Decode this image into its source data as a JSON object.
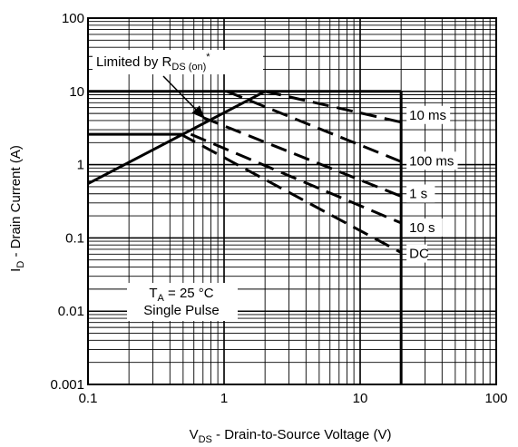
{
  "chart_data": {
    "type": "line",
    "xscale": "log",
    "yscale": "log",
    "xlim": [
      0.1,
      100
    ],
    "ylim": [
      0.001,
      100
    ],
    "x_ticks": [
      "0.1",
      "1",
      "10",
      "100"
    ],
    "y_ticks": [
      "100",
      "10",
      "1",
      "0.1",
      "0.01",
      "0.001"
    ],
    "grid": true,
    "xlabel": {
      "main": "V",
      "sub": "DS",
      "rest": " - Drain-to-Source Voltage (V)"
    },
    "ylabel": {
      "main": "I",
      "sub": "D",
      "rest": " - Drain Current (A)"
    },
    "rds_label": {
      "main": "Limited by R",
      "sub": "DS (on)",
      "sup": "*"
    },
    "conditions": {
      "line1": {
        "main": "T",
        "sub": "A",
        "rest": " = 25 °C"
      },
      "line2": "Single Pulse"
    },
    "series": [
      {
        "name": "Limited by RDS(on)",
        "style": "solid",
        "points": [
          [
            0.1,
            0.55
          ],
          [
            2.0,
            10.0
          ]
        ]
      },
      {
        "name": "10 ms",
        "style": "dashed",
        "points": [
          [
            2.0,
            10.0
          ],
          [
            20.0,
            3.8
          ]
        ]
      },
      {
        "name": "100 ms",
        "style": "dashed",
        "points": [
          [
            1.05,
            10.0
          ],
          [
            20.0,
            1.1
          ]
        ]
      },
      {
        "name": "1 s",
        "style": "dashed",
        "points": [
          [
            0.7,
            4.4
          ],
          [
            20.0,
            0.37
          ]
        ]
      },
      {
        "name": "10 s",
        "style": "dashed",
        "points": [
          [
            0.57,
            2.6
          ],
          [
            20.0,
            0.16
          ]
        ]
      },
      {
        "name": "DC",
        "style": "dashed",
        "points": [
          [
            0.48,
            2.6
          ],
          [
            20.0,
            0.063
          ]
        ]
      }
    ],
    "limits": {
      "current_pulse_max": 10.0,
      "current_continuous_max": 2.6,
      "voltage_max": 20.0
    }
  }
}
